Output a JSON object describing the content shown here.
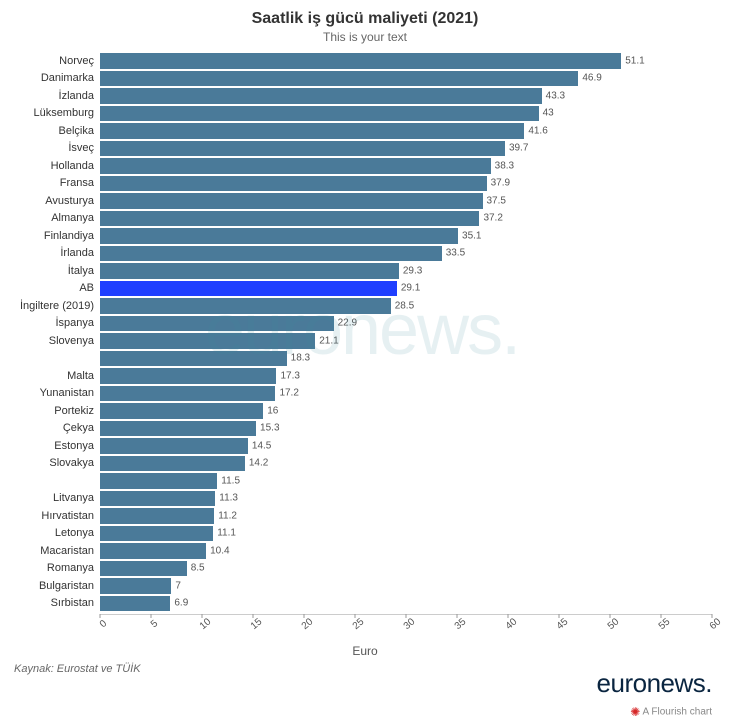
{
  "title": "Saatlik iş gücü maliyeti (2021)",
  "subtitle": "This is your text",
  "title_fontsize": 16,
  "subtitle_fontsize": 12,
  "xaxis_label": "Euro",
  "source": "Kaynak: Eurostat ve TÜİK",
  "logo_text": "euronews.",
  "watermark_text": "euronews.",
  "flourish_text": "A Flourish chart",
  "chart": {
    "type": "bar-horizontal",
    "xlim": [
      0,
      60
    ],
    "xtick_step": 5,
    "xticks": [
      0,
      5,
      10,
      15,
      20,
      25,
      30,
      35,
      40,
      45,
      50,
      55,
      60
    ],
    "bar_color": "#4a7a99",
    "highlight_color": "#1f3fff",
    "background_color": "#ffffff",
    "label_fontsize": 11,
    "value_fontsize": 10,
    "axis_color": "#cccccc",
    "tick_color": "#555555",
    "rows": [
      {
        "label": "Norveç",
        "value": 51.1
      },
      {
        "label": "Danimarka",
        "value": 46.9
      },
      {
        "label": "İzlanda",
        "value": 43.3
      },
      {
        "label": "Lüksemburg",
        "value": 43
      },
      {
        "label": "Belçika",
        "value": 41.6
      },
      {
        "label": "İsveç",
        "value": 39.7
      },
      {
        "label": "Hollanda",
        "value": 38.3
      },
      {
        "label": "Fransa",
        "value": 37.9
      },
      {
        "label": "Avusturya",
        "value": 37.5
      },
      {
        "label": "Almanya",
        "value": 37.2
      },
      {
        "label": "Finlandiya",
        "value": 35.1
      },
      {
        "label": "İrlanda",
        "value": 33.5
      },
      {
        "label": "İtalya",
        "value": 29.3
      },
      {
        "label": "AB",
        "value": 29.1,
        "highlight": true
      },
      {
        "label": "İngiltere (2019)",
        "value": 28.5
      },
      {
        "label": "İspanya",
        "value": 22.9
      },
      {
        "label": "Slovenya",
        "value": 21.1
      },
      {
        "label": "",
        "value": 18.3
      },
      {
        "label": "Malta",
        "value": 17.3
      },
      {
        "label": "Yunanistan",
        "value": 17.2
      },
      {
        "label": "Portekiz",
        "value": 16
      },
      {
        "label": "Çekya",
        "value": 15.3
      },
      {
        "label": "Estonya",
        "value": 14.5
      },
      {
        "label": "Slovakya",
        "value": 14.2
      },
      {
        "label": "",
        "value": 11.5
      },
      {
        "label": "Litvanya",
        "value": 11.3
      },
      {
        "label": "Hırvatistan",
        "value": 11.2
      },
      {
        "label": "Letonya",
        "value": 11.1
      },
      {
        "label": "Macaristan",
        "value": 10.4
      },
      {
        "label": "Romanya",
        "value": 8.5
      },
      {
        "label": "Bulgaristan",
        "value": 7
      },
      {
        "label": "Sırbistan",
        "value": 6.9
      }
    ]
  }
}
